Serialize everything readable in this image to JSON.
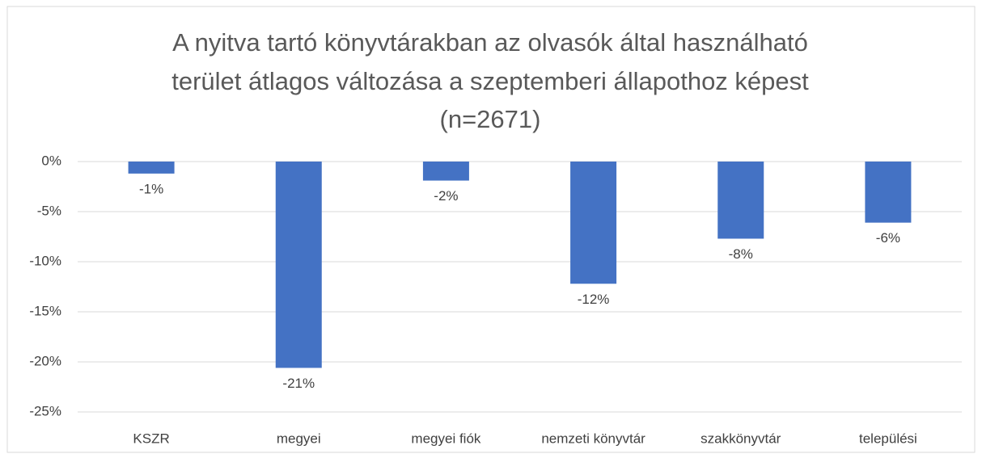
{
  "chart_data": {
    "type": "bar",
    "title": [
      "A nyitva tartó könyvtárakban az olvasók által használható",
      "terület átlagos változása a szeptemberi állapothoz képest",
      "(n=2671)"
    ],
    "categories": [
      "KSZR",
      "megyei",
      "megyei fiók",
      "nemzeti könyvtár",
      "szakkönyvtár",
      "települési"
    ],
    "values": [
      -1.2,
      -20.6,
      -1.9,
      -12.2,
      -7.7,
      -6.1
    ],
    "value_labels": [
      "-1%",
      "-21%",
      "-2%",
      "-12%",
      "-8%",
      "-6%"
    ],
    "color": "#4472c4",
    "ylim": [
      -25,
      0
    ],
    "yticks": [
      {
        "value": 0,
        "label": "0%"
      },
      {
        "value": -5,
        "label": "-5%"
      },
      {
        "value": -10,
        "label": "-10%"
      },
      {
        "value": -15,
        "label": "-15%"
      },
      {
        "value": -20,
        "label": "-20%"
      },
      {
        "value": -25,
        "label": "-25%"
      }
    ],
    "grid": true
  }
}
